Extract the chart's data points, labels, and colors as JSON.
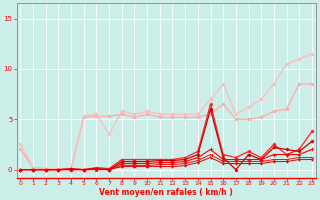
{
  "x": [
    0,
    1,
    2,
    3,
    4,
    5,
    6,
    7,
    8,
    9,
    10,
    11,
    12,
    13,
    14,
    15,
    16,
    17,
    18,
    19,
    20,
    21,
    22,
    23
  ],
  "lines": [
    {
      "y": [
        2.0,
        0.2,
        0.1,
        0.1,
        0.1,
        5.2,
        5.3,
        5.3,
        5.5,
        5.2,
        5.5,
        5.2,
        5.2,
        5.2,
        5.2,
        5.5,
        6.5,
        5.0,
        5.0,
        5.2,
        5.8,
        6.0,
        8.5,
        8.5
      ],
      "color": "#ffaaaa",
      "lw": 0.9,
      "marker": "o",
      "ms": 1.8,
      "zorder": 2
    },
    {
      "y": [
        2.5,
        0.2,
        0.1,
        0.1,
        0.1,
        5.3,
        5.5,
        3.5,
        5.8,
        5.5,
        5.8,
        5.5,
        5.5,
        5.5,
        5.5,
        7.0,
        8.5,
        5.5,
        6.2,
        7.0,
        8.5,
        10.5,
        11.0,
        11.5
      ],
      "color": "#ffbbbb",
      "lw": 0.9,
      "marker": "o",
      "ms": 1.8,
      "zorder": 2
    },
    {
      "y": [
        0,
        0,
        0,
        0,
        0.1,
        0.0,
        0.2,
        0.1,
        1.0,
        1.0,
        1.0,
        1.0,
        1.0,
        1.2,
        1.8,
        6.5,
        1.5,
        1.2,
        1.8,
        1.2,
        2.5,
        1.5,
        2.0,
        3.8
      ],
      "color": "#ff2222",
      "lw": 0.9,
      "marker": "D",
      "ms": 1.5,
      "zorder": 3
    },
    {
      "y": [
        0,
        0,
        0,
        0,
        0.05,
        0,
        0.1,
        0.0,
        0.8,
        0.8,
        0.8,
        0.9,
        0.9,
        1.0,
        1.5,
        6.0,
        1.2,
        0.0,
        1.5,
        1.0,
        2.2,
        2.0,
        1.8,
        2.8
      ],
      "color": "#cc0000",
      "lw": 0.9,
      "marker": "D",
      "ms": 1.5,
      "zorder": 3
    },
    {
      "y": [
        0,
        0,
        0,
        0,
        0,
        0,
        0.05,
        0,
        0.6,
        0.6,
        0.6,
        0.7,
        0.7,
        0.8,
        1.2,
        2.0,
        1.0,
        1.0,
        1.0,
        1.0,
        1.5,
        1.5,
        1.5,
        2.0
      ],
      "color": "#ff0000",
      "lw": 0.8,
      "marker": "+",
      "ms": 2.5,
      "zorder": 3
    },
    {
      "y": [
        0,
        0,
        0,
        0,
        0,
        0,
        0,
        0,
        0.4,
        0.4,
        0.4,
        0.5,
        0.5,
        0.6,
        0.9,
        1.5,
        0.8,
        0.8,
        0.8,
        0.8,
        1.0,
        1.0,
        1.2,
        1.2
      ],
      "color": "#ee1111",
      "lw": 0.7,
      "marker": "x",
      "ms": 2.0,
      "zorder": 3
    },
    {
      "y": [
        0,
        0,
        0,
        0,
        0,
        0,
        0,
        0,
        0.3,
        0.3,
        0.3,
        0.3,
        0.3,
        0.4,
        0.7,
        1.2,
        0.6,
        0.6,
        0.6,
        0.6,
        0.8,
        0.8,
        1.0,
        1.0
      ],
      "color": "#dd0000",
      "lw": 0.7,
      "marker": ".",
      "ms": 1.5,
      "zorder": 3
    }
  ],
  "xlabel": "Vent moyen/en rafales ( km/h )",
  "ylabel_ticks": [
    0,
    5,
    10,
    15
  ],
  "xlim": [
    -0.3,
    23.3
  ],
  "ylim": [
    -0.8,
    16.5
  ],
  "bg_color": "#cceee8",
  "tick_color": "#ff0000",
  "grid_color": "#ffffff",
  "spine_color": "#888888",
  "xlabel_color": "#ff0000",
  "xlabel_fontsize": 5.5,
  "xlabel_fontweight": "bold"
}
